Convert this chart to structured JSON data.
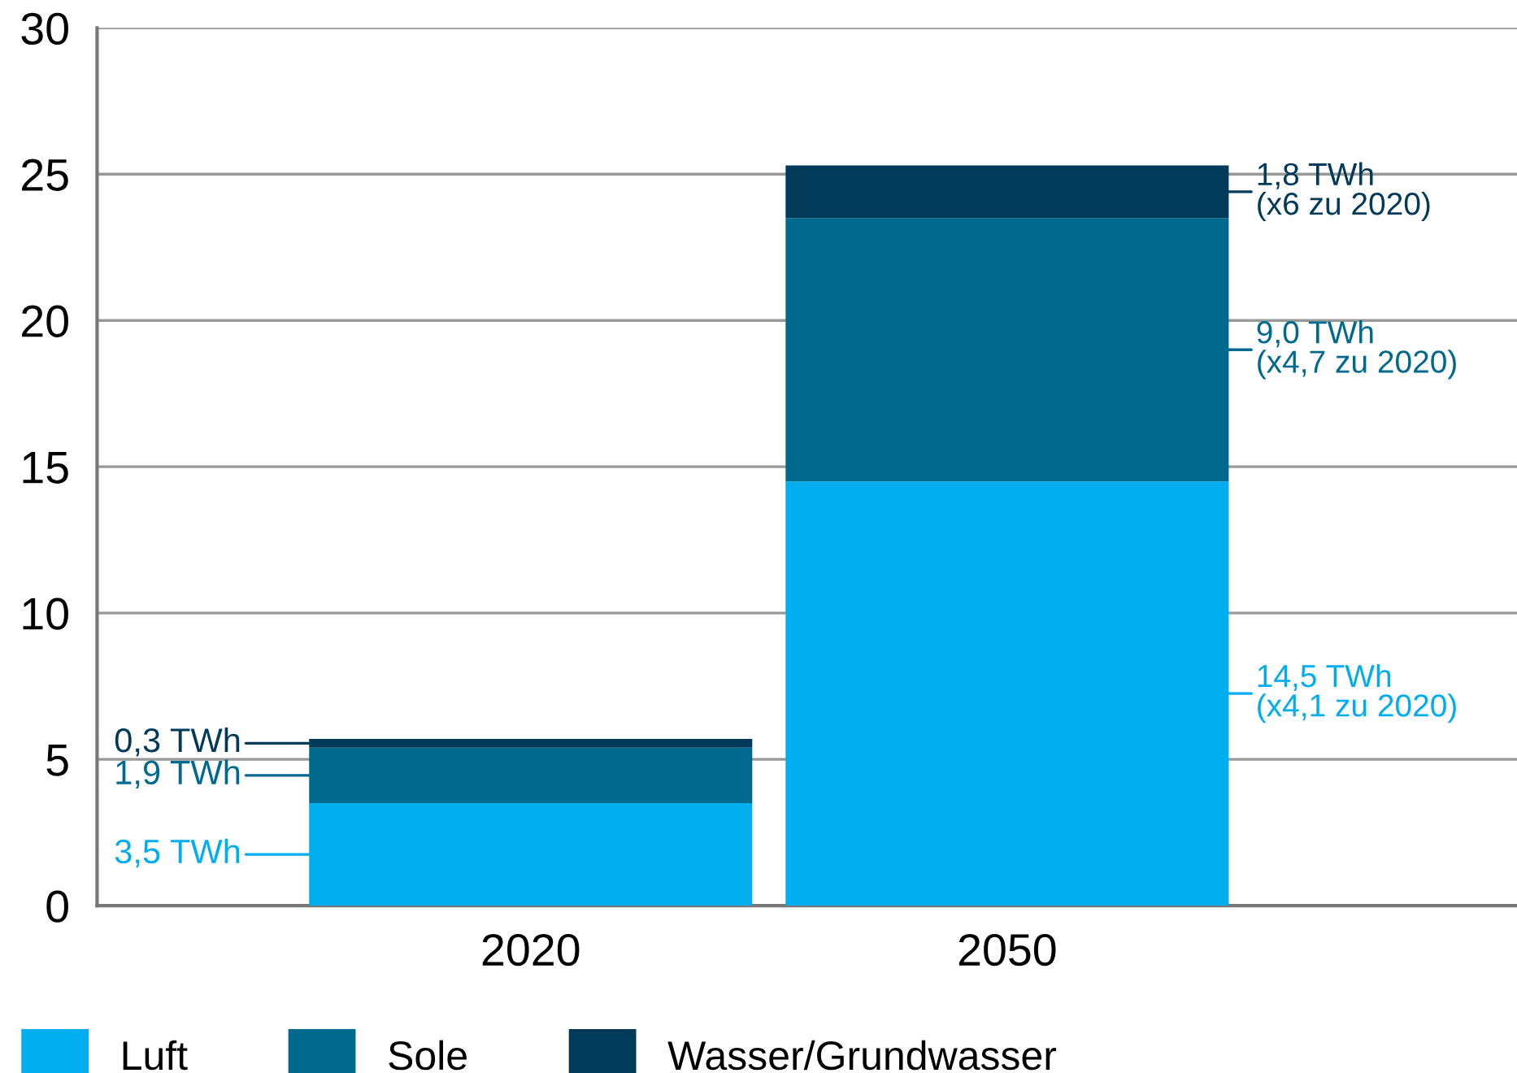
{
  "chart_data": {
    "type": "bar",
    "stacked": true,
    "categories": [
      "2020",
      "2050"
    ],
    "series": [
      {
        "name": "Luft",
        "color": "#00aeef",
        "values": [
          3.5,
          14.5
        ],
        "value_labels": [
          "3,5 TWh",
          "14,5 TWh\n(x4,1 zu 2020)"
        ]
      },
      {
        "name": "Sole",
        "color": "#006a8e",
        "values": [
          1.9,
          9.0
        ],
        "value_labels": [
          "1,9 TWh",
          "9,0 TWh\n(x4,7 zu 2020)"
        ]
      },
      {
        "name": "Wasser/Grundwasser",
        "color": "#023b59",
        "values": [
          0.3,
          1.8
        ],
        "value_labels": [
          "0,3 TWh",
          "1,8 TWh\n(x6 zu 2020)"
        ]
      }
    ],
    "ylim": [
      0,
      30
    ],
    "yticks": [
      0,
      5,
      10,
      15,
      20,
      25,
      30
    ],
    "grid": "y",
    "legend": "bottom"
  }
}
